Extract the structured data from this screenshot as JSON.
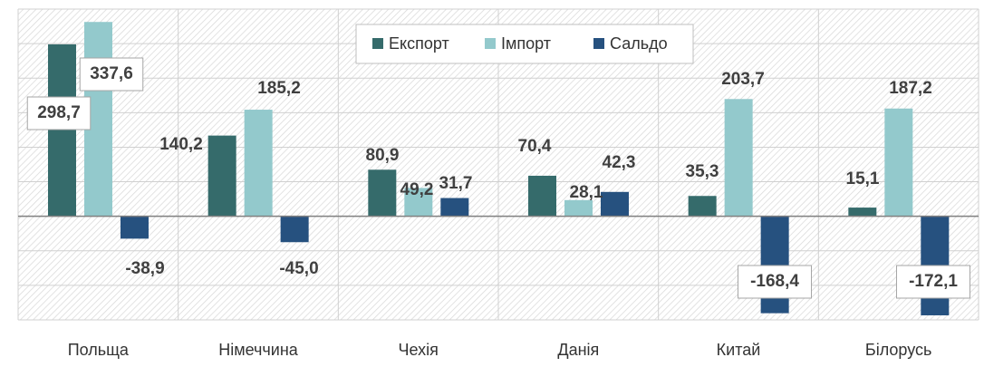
{
  "chart_data": {
    "type": "bar",
    "categories": [
      "Польща",
      "Німеччина",
      "Чехія",
      "Данія",
      "Китай",
      "Білорусь"
    ],
    "series": [
      {
        "name": "Експорт",
        "color": "#356b6b",
        "values": [
          298.7,
          140.2,
          80.9,
          70.4,
          35.3,
          15.1
        ],
        "value_labels": [
          "298,7",
          "140,2",
          "80,9",
          "70,4",
          "35,3",
          "15,1"
        ]
      },
      {
        "name": "Імпорт",
        "color": "#93c9cc",
        "values": [
          337.6,
          185.2,
          49.2,
          28.1,
          203.7,
          187.2
        ],
        "value_labels": [
          "337,6",
          "185,2",
          "49,2",
          "28,1",
          "203,7",
          "187,2"
        ]
      },
      {
        "name": "Сальдо",
        "color": "#26517f",
        "values": [
          -38.9,
          -45.0,
          31.7,
          42.3,
          -168.4,
          -172.1
        ],
        "value_labels": [
          "-38,9",
          "-45,0",
          "31,7",
          "42,3",
          "-168,4",
          "-172,1"
        ]
      }
    ],
    "ylim": [
      -180,
      360
    ],
    "yticks": [
      -180,
      -120,
      -60,
      0,
      60,
      120,
      180,
      240,
      300,
      360
    ],
    "grid": true,
    "legend": "top"
  }
}
